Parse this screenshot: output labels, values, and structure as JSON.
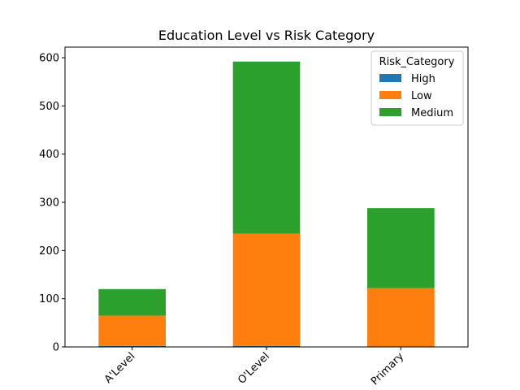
{
  "chart_data": {
    "type": "bar",
    "stacked": true,
    "title": "Education Level vs Risk Category",
    "xlabel": "",
    "ylabel": "",
    "categories": [
      "A'Level",
      "O'Level",
      "Primary"
    ],
    "series": [
      {
        "name": "High",
        "values": [
          2,
          2,
          0
        ],
        "color": "#1f77b4"
      },
      {
        "name": "Low",
        "values": [
          63,
          233,
          122
        ],
        "color": "#ff7f0e"
      },
      {
        "name": "Medium",
        "values": [
          55,
          357,
          166
        ],
        "color": "#2ca02c"
      }
    ],
    "ylim": [
      0,
      622
    ],
    "yticks": [
      0,
      100,
      200,
      300,
      400,
      500,
      600
    ],
    "legend": {
      "title": "Risk_Category",
      "placement": "top-right"
    },
    "grid": false
  }
}
